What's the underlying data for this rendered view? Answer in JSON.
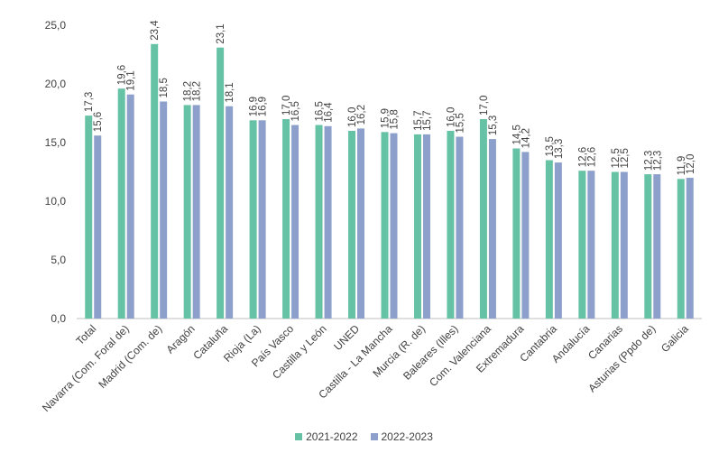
{
  "chart_data": {
    "type": "bar",
    "ylim": [
      0,
      25
    ],
    "yticks": [
      "0,0",
      "5,0",
      "10,0",
      "15,0",
      "20,0",
      "25,0"
    ],
    "categories": [
      "Total",
      "Navarra (Com. Foral de)",
      "Madrid (Com. de)",
      "Aragón",
      "Cataluña",
      "Rioja (La)",
      "País Vasco",
      "Castilla y León",
      "UNED",
      "Castilla - La Mancha",
      "Murcia (R. de)",
      "Baleares (Illes)",
      "Com. Valenciana",
      "Extremadura",
      "Cantabria",
      "Andalucía",
      "Canarias",
      "Asturias (Ppdo de)",
      "Galicia"
    ],
    "series": [
      {
        "name": "2021-2022",
        "color": "#66c2a5",
        "values": [
          17.3,
          19.6,
          23.4,
          18.2,
          23.1,
          16.9,
          17.0,
          16.5,
          16.0,
          15.9,
          15.7,
          16.0,
          17.0,
          14.5,
          13.5,
          12.6,
          12.5,
          12.3,
          11.9
        ],
        "labels": [
          "17,3",
          "19,6",
          "23,4",
          "18,2",
          "23,1",
          "16,9",
          "17,0",
          "16,5",
          "16,0",
          "15,9",
          "15,7",
          "16,0",
          "17,0",
          "14,5",
          "13,5",
          "12,6",
          "12,5",
          "12,3",
          "11,9"
        ]
      },
      {
        "name": "2022-2023",
        "color": "#8da0cb",
        "values": [
          15.6,
          19.1,
          18.5,
          18.2,
          18.1,
          16.9,
          16.5,
          16.4,
          16.2,
          15.8,
          15.7,
          15.5,
          15.3,
          14.2,
          13.3,
          12.6,
          12.5,
          12.3,
          12.0
        ],
        "labels": [
          "15,6",
          "19,1",
          "18,5",
          "18,2",
          "18,1",
          "16,9",
          "16,5",
          "16,4",
          "16,2",
          "15,8",
          "15,7",
          "15,5",
          "15,3",
          "14,2",
          "13,3",
          "12,6",
          "12,5",
          "12,3",
          "12,0"
        ]
      }
    ],
    "grid": false,
    "legend_position": "bottom"
  }
}
